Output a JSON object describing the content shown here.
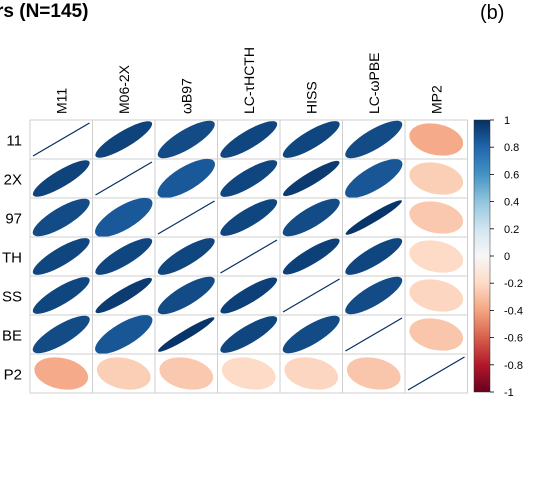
{
  "title": "rs (N=145)",
  "panel_label": "(b)",
  "chart_data": {
    "type": "heatmap",
    "display": "ellipse correlation matrix",
    "col_labels": [
      "M11",
      "M06-2X",
      "ωB97",
      "LC-τHCTH",
      "HISS",
      "LC-ωPBE",
      "MP2"
    ],
    "row_labels": [
      "11",
      "2X",
      "97",
      "TH",
      "SS",
      "BE",
      "P2"
    ],
    "matrix": [
      [
        1.0,
        0.93,
        0.9,
        0.92,
        0.92,
        0.9,
        -0.38
      ],
      [
        0.93,
        1.0,
        0.85,
        0.92,
        0.96,
        0.86,
        -0.25
      ],
      [
        0.9,
        0.85,
        1.0,
        0.92,
        0.9,
        0.98,
        -0.27
      ],
      [
        0.92,
        0.92,
        0.92,
        1.0,
        0.94,
        0.92,
        -0.2
      ],
      [
        0.92,
        0.96,
        0.9,
        0.94,
        1.0,
        0.9,
        -0.22
      ],
      [
        0.9,
        0.86,
        0.98,
        0.92,
        0.9,
        1.0,
        -0.28
      ],
      [
        -0.38,
        -0.25,
        -0.27,
        -0.2,
        -0.22,
        -0.28,
        1.0
      ]
    ],
    "colorbar": {
      "min": -1,
      "max": 1,
      "ticks": [
        "1",
        "0.8",
        "0.6",
        "0.4",
        "0.2",
        "0",
        "-0.2",
        "-0.4",
        "-0.6",
        "-0.8",
        "-1"
      ],
      "colors": [
        "#053061",
        "#2166ac",
        "#4393c3",
        "#92c5de",
        "#d1e5f0",
        "#f7f7f7",
        "#fddbc7",
        "#f4a582",
        "#d6604d",
        "#b2182b",
        "#67001f"
      ]
    },
    "grid": true
  }
}
